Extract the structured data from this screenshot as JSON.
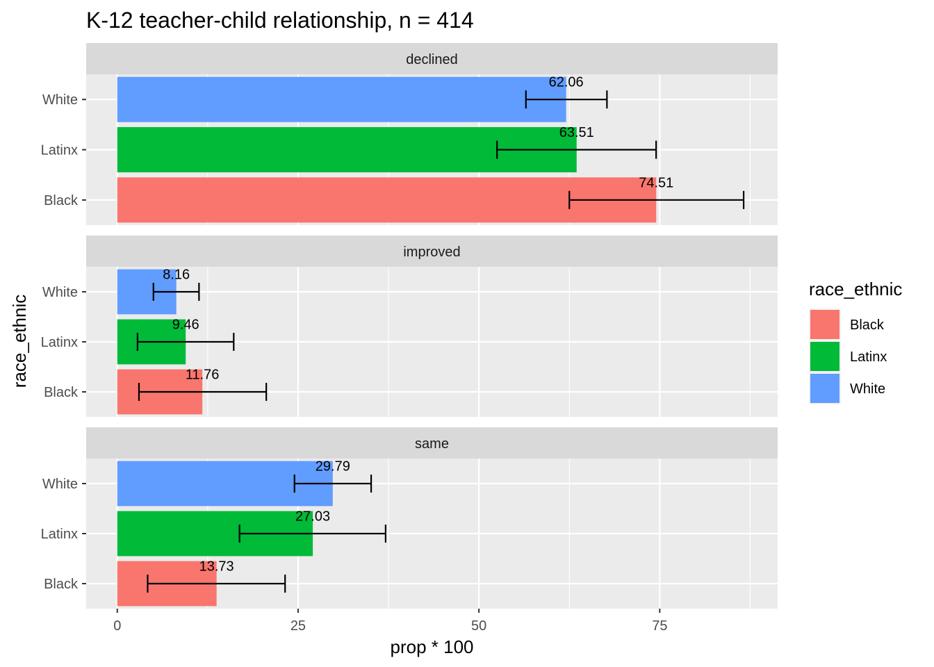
{
  "chart_data": {
    "type": "bar",
    "orientation": "horizontal",
    "title": "K-12 teacher-child relationship, n = 414",
    "xlabel": "prop * 100",
    "ylabel": "race_ethnic",
    "xlim": [
      -4.3,
      91.3
    ],
    "x_ticks": [
      0,
      25,
      50,
      75
    ],
    "x_tick_labels": [
      "0",
      "25",
      "50",
      "75"
    ],
    "categories": [
      "White",
      "Latinx",
      "Black"
    ],
    "grid": true,
    "legend": {
      "title": "race_ethnic",
      "position": "right",
      "entries": [
        {
          "label": "Black",
          "color": "#F8766D"
        },
        {
          "label": "Latinx",
          "color": "#00BA38"
        },
        {
          "label": "White",
          "color": "#619CFF"
        }
      ]
    },
    "panels": [
      {
        "facet": "declined",
        "bars": [
          {
            "group": "White",
            "value": 62.06,
            "label": "62.06",
            "err_low": 56.5,
            "err_high": 67.7
          },
          {
            "group": "Latinx",
            "value": 63.51,
            "label": "63.51",
            "err_low": 52.5,
            "err_high": 74.5
          },
          {
            "group": "Black",
            "value": 74.51,
            "label": "74.51",
            "err_low": 62.5,
            "err_high": 86.6
          }
        ]
      },
      {
        "facet": "improved",
        "bars": [
          {
            "group": "White",
            "value": 8.16,
            "label": "8.16",
            "err_low": 5.0,
            "err_high": 11.3
          },
          {
            "group": "Latinx",
            "value": 9.46,
            "label": "9.46",
            "err_low": 2.8,
            "err_high": 16.1
          },
          {
            "group": "Black",
            "value": 11.76,
            "label": "11.76",
            "err_low": 3.0,
            "err_high": 20.6
          }
        ]
      },
      {
        "facet": "same",
        "bars": [
          {
            "group": "White",
            "value": 29.79,
            "label": "29.79",
            "err_low": 24.5,
            "err_high": 35.1
          },
          {
            "group": "Latinx",
            "value": 27.03,
            "label": "27.03",
            "err_low": 16.9,
            "err_high": 37.1
          },
          {
            "group": "Black",
            "value": 13.73,
            "label": "13.73",
            "err_low": 4.2,
            "err_high": 23.2
          }
        ]
      }
    ]
  }
}
